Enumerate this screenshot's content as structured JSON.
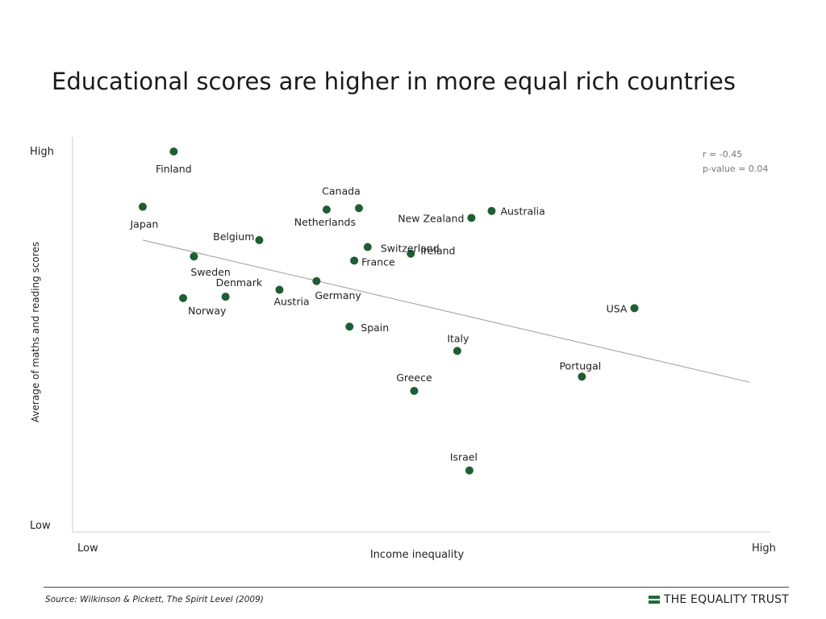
{
  "slide": {
    "title": "Educational scores are higher in more equal rich countries",
    "source": "Source: Wilkinson & Pickett, The Spirit Level (2009)",
    "brand": "THE EQUALITY TRUST"
  },
  "colors": {
    "point": "#1f5e33",
    "trendline": "#9a9a9a",
    "axis": "#cccccc",
    "brand": "#1f6b3a"
  },
  "chart_data": {
    "type": "scatter",
    "xlabel": "Income inequality",
    "ylabel": "Average of maths and reading scores",
    "x_tick_labels": [
      "Low",
      "High"
    ],
    "y_tick_labels": [
      "Low",
      "High"
    ],
    "xlim": [
      0,
      100
    ],
    "ylim": [
      0,
      100
    ],
    "grid": false,
    "annotations": [
      "r = -0.45",
      "p-value = 0.04"
    ],
    "points": [
      {
        "label": "Finland",
        "x": 10.7,
        "y": 100
      },
      {
        "label": "Japan",
        "x": 6.1,
        "y": 84.1
      },
      {
        "label": "Canada",
        "x": 38.2,
        "y": 83.7
      },
      {
        "label": "Netherlands",
        "x": 33.4,
        "y": 83.3
      },
      {
        "label": "Australia",
        "x": 57.9,
        "y": 82.9
      },
      {
        "label": "New Zealand",
        "x": 54.9,
        "y": 80.9
      },
      {
        "label": "Belgium",
        "x": 23.4,
        "y": 74.5
      },
      {
        "label": "Switzerland",
        "x": 39.5,
        "y": 72.5
      },
      {
        "label": "Sweden",
        "x": 13.7,
        "y": 69.8
      },
      {
        "label": "Ireland",
        "x": 45.9,
        "y": 70.6
      },
      {
        "label": "France",
        "x": 37.5,
        "y": 68.6
      },
      {
        "label": "Germany",
        "x": 31.9,
        "y": 62.7
      },
      {
        "label": "Austria",
        "x": 26.4,
        "y": 60.2
      },
      {
        "label": "Denmark",
        "x": 18.4,
        "y": 58.2
      },
      {
        "label": "Norway",
        "x": 12.1,
        "y": 57.8
      },
      {
        "label": "USA",
        "x": 79.1,
        "y": 54.9
      },
      {
        "label": "Spain",
        "x": 36.8,
        "y": 49.6
      },
      {
        "label": "Italy",
        "x": 52.8,
        "y": 42.6
      },
      {
        "label": "Portugal",
        "x": 71.3,
        "y": 35.2
      },
      {
        "label": "Greece",
        "x": 46.4,
        "y": 31.1
      },
      {
        "label": "Israel",
        "x": 54.6,
        "y": 8.2
      }
    ],
    "trendline": {
      "x": [
        6.1,
        96.2
      ],
      "y": [
        74.5,
        33.6
      ]
    }
  }
}
